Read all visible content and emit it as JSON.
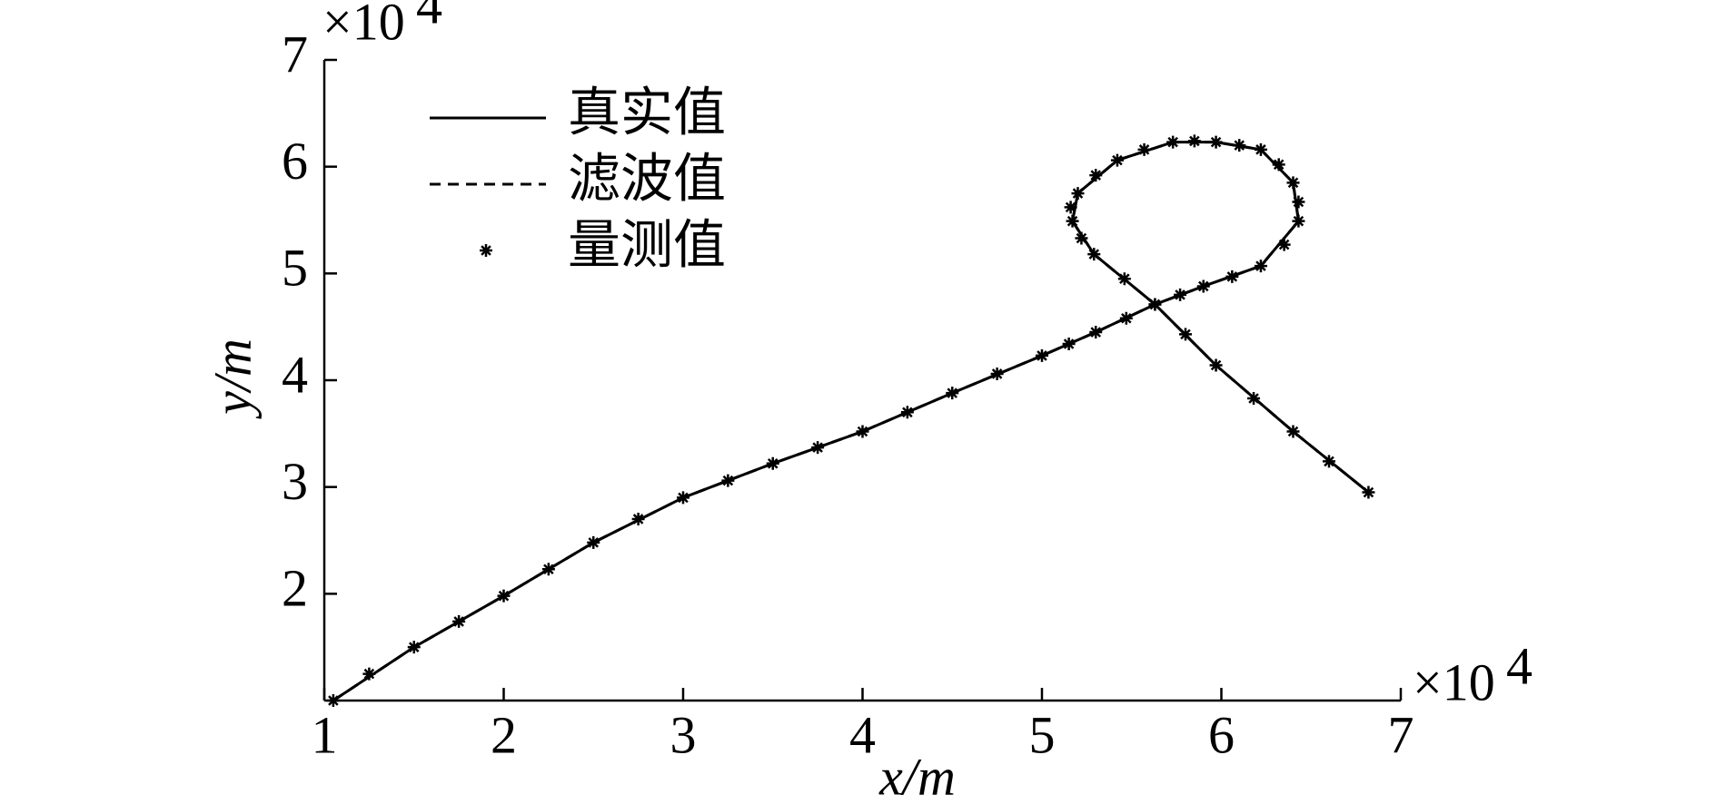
{
  "chart_data": {
    "type": "line",
    "x_label": "x/m",
    "y_label": "y/m",
    "x_multiplier": {
      "base": "×10",
      "exponent": "4"
    },
    "y_multiplier": {
      "base": "×10",
      "exponent": "4"
    },
    "xlim": [
      1,
      7
    ],
    "ylim": [
      1,
      7
    ],
    "xticks": [
      1,
      2,
      3,
      4,
      5,
      6,
      7
    ],
    "yticks": [
      2,
      3,
      4,
      5,
      6,
      7
    ],
    "grid": false,
    "legend_position": "upper left",
    "series": [
      {
        "name": "真实值",
        "color": "#000000",
        "style": "solid",
        "x": [
          1.05,
          1.5,
          2,
          2.5,
          3,
          3.5,
          4,
          4.5,
          5,
          5.3,
          5.63,
          5.9,
          6.22,
          6.43,
          6.4,
          6.22,
          5.97,
          5.73,
          5.42,
          5.2,
          5.17,
          5.29,
          5.63,
          5.97,
          6.4,
          6.82
        ],
        "y": [
          1.0,
          1.5,
          1.98,
          2.48,
          2.9,
          3.22,
          3.52,
          3.88,
          4.23,
          4.45,
          4.71,
          4.88,
          5.07,
          5.49,
          5.85,
          6.16,
          6.23,
          6.23,
          6.06,
          5.75,
          5.49,
          5.18,
          4.71,
          4.14,
          3.52,
          2.95
        ]
      },
      {
        "name": "滤波值",
        "color": "#000000",
        "style": "dashed",
        "x": [
          1.05,
          1.5,
          2,
          2.5,
          3,
          3.5,
          4,
          4.5,
          5,
          5.3,
          5.63,
          5.9,
          6.22,
          6.43,
          6.4,
          6.22,
          5.97,
          5.73,
          5.42,
          5.2,
          5.17,
          5.29,
          5.63,
          5.97,
          6.4,
          6.82
        ],
        "y": [
          1.0,
          1.5,
          1.98,
          2.48,
          2.9,
          3.22,
          3.52,
          3.88,
          4.23,
          4.45,
          4.71,
          4.88,
          5.07,
          5.49,
          5.85,
          6.16,
          6.23,
          6.23,
          6.06,
          5.75,
          5.49,
          5.18,
          4.71,
          4.14,
          3.52,
          2.95
        ]
      },
      {
        "name": "量测值",
        "color": "#000000",
        "style": "marker",
        "x": [
          1.05,
          1.25,
          1.5,
          1.75,
          2,
          2.25,
          2.5,
          2.75,
          3,
          3.25,
          3.5,
          3.75,
          4,
          4.25,
          4.5,
          4.75,
          5,
          5.15,
          5.3,
          5.47,
          5.63,
          5.77,
          5.9,
          6.06,
          6.22,
          6.35,
          6.43,
          6.43,
          6.4,
          6.32,
          6.22,
          6.1,
          5.97,
          5.85,
          5.73,
          5.57,
          5.42,
          5.3,
          5.2,
          5.16,
          5.17,
          5.22,
          5.29,
          5.46,
          5.63,
          5.8,
          5.97,
          6.18,
          6.4,
          6.6,
          6.82
        ],
        "y": [
          1.0,
          1.25,
          1.5,
          1.74,
          1.98,
          2.23,
          2.48,
          2.7,
          2.9,
          3.06,
          3.22,
          3.37,
          3.52,
          3.7,
          3.88,
          4.06,
          4.23,
          4.34,
          4.45,
          4.58,
          4.71,
          4.8,
          4.88,
          4.97,
          5.07,
          5.27,
          5.49,
          5.67,
          5.85,
          6.02,
          6.16,
          6.2,
          6.23,
          6.24,
          6.23,
          6.16,
          6.06,
          5.92,
          5.75,
          5.62,
          5.49,
          5.33,
          5.18,
          4.95,
          4.71,
          4.43,
          4.14,
          3.83,
          3.52,
          3.24,
          2.95
        ]
      }
    ]
  }
}
